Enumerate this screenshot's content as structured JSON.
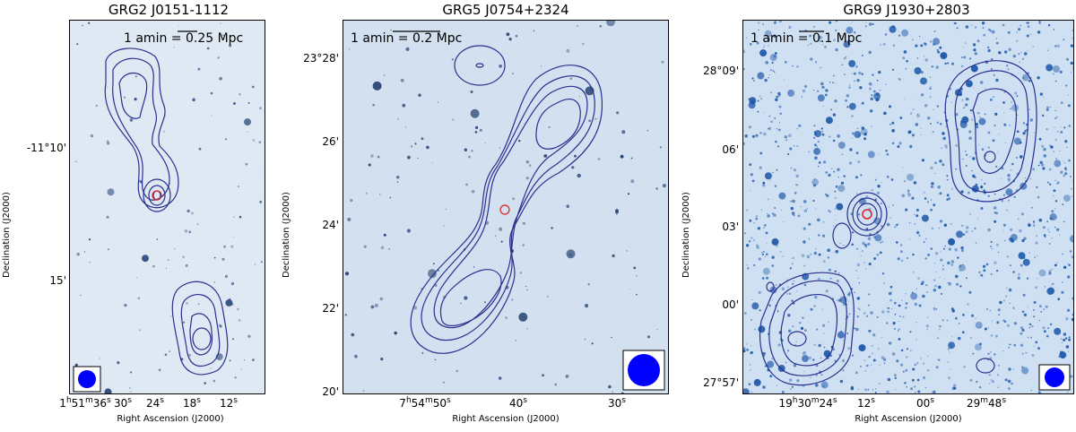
{
  "chart_data": [
    {
      "type": "image",
      "title": "GRG2 J0151-1112",
      "scale_bar": "1 amin = 0.25 Mpc",
      "xlabel": "Right Ascension (J2000)",
      "ylabel": "Declination (J2000)",
      "x_ticks": [
        "1ʰ51ᵐ36ˢ",
        "30ˢ",
        "24ˢ",
        "18ˢ",
        "12ˢ"
      ],
      "y_ticks": [
        "-11°10'",
        "15'"
      ],
      "beam": "circular",
      "colors": {
        "background": "#dfe9f4",
        "contour": "#2b2f8f",
        "host": "#e02020",
        "beam": "#0000ff"
      }
    },
    {
      "type": "image",
      "title": "GRG5 J0754+2324",
      "scale_bar": "1 amin = 0.2 Mpc",
      "xlabel": "Right Ascension (J2000)",
      "ylabel": "Declination (J2000)",
      "x_ticks": [
        "7ʰ54ᵐ50ˢ",
        "40ˢ",
        "30ˢ"
      ],
      "y_ticks": [
        "23°28'",
        "26'",
        "24'",
        "22'",
        "20'"
      ],
      "beam": "circular",
      "colors": {
        "background": "#d2e0ef",
        "contour": "#2b2f8f",
        "host": "#e02020",
        "beam": "#0000ff"
      }
    },
    {
      "type": "image",
      "title": "GRG9 J1930+2803",
      "scale_bar": "1 amin = 0.1 Mpc",
      "xlabel": "Right Ascension (J2000)",
      "ylabel": "Declination (J2000)",
      "x_ticks": [
        "19ʰ30ᵐ24ˢ",
        "12ˢ",
        "00ˢ",
        "29ᵐ48ˢ"
      ],
      "y_ticks": [
        "28°09'",
        "06'",
        "03'",
        "00'",
        "27°57'"
      ],
      "beam": "circular",
      "colors": {
        "background": "#cfe0f2",
        "contour": "#2b2f8f",
        "host": "#e02020",
        "beam": "#0000ff"
      }
    }
  ]
}
